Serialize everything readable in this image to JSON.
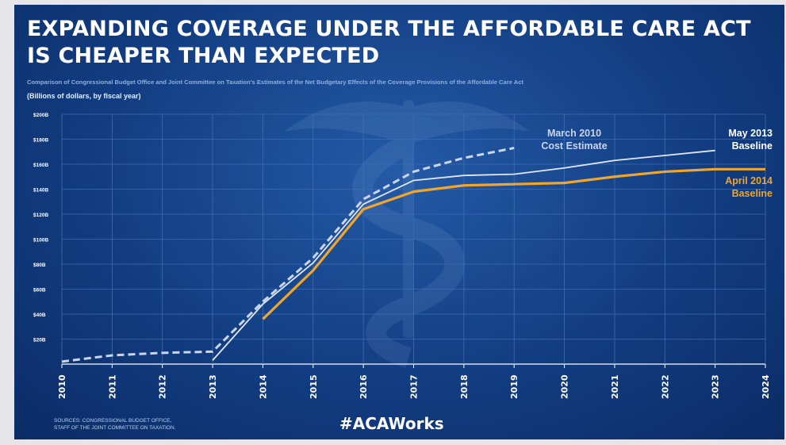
{
  "poster": {
    "title_line1": "EXPANDING COVERAGE UNDER THE AFFORDABLE CARE ACT",
    "title_line2": "IS CHEAPER THAN EXPECTED",
    "subtitle": "Comparison of Congressional Budget Office and Joint Committee on Taxation's Estimates of the Net Budgetary Effects of the Coverage Provisions of the Affordable Care Act",
    "unit_note": "(Billions of dollars, by fiscal year)",
    "sources_line1": "SOURCES: CONGRESSIONAL BUDGET OFFICE,",
    "sources_line2": "STAFF OF THE JOINT COMMITTEE ON TAXATION.",
    "hashtag": "#ACAWorks",
    "watermark_icon": "caduceus-icon"
  },
  "colors": {
    "background": "#123d82",
    "march2010": "#c9d6ee",
    "may2013": "#dfe7f6",
    "april2014": "#f0a62a",
    "grid": "#3d6db3",
    "text": "#ffffff"
  },
  "chart_data": {
    "type": "line",
    "x": [
      2010,
      2011,
      2012,
      2013,
      2014,
      2015,
      2016,
      2017,
      2018,
      2019,
      2020,
      2021,
      2022,
      2023,
      2024
    ],
    "ylim": [
      0,
      200
    ],
    "yticks": [
      20,
      40,
      60,
      80,
      100,
      120,
      140,
      160,
      180,
      200
    ],
    "ytick_labels": [
      "$20B",
      "$40B",
      "$60B",
      "$80B",
      "$100B",
      "$120B",
      "$140B",
      "$160B",
      "$180B",
      "$200B"
    ],
    "xtick_labels": [
      "2010",
      "2011",
      "2012",
      "2013",
      "2014",
      "2015",
      "2016",
      "2017",
      "2018",
      "2019",
      "2020",
      "2021",
      "2022",
      "2023",
      "2024"
    ],
    "grid": true,
    "series": [
      {
        "name": "March 2010 Cost Estimate",
        "label_lines": [
          "March 2010",
          "Cost Estimate"
        ],
        "style": "dashed",
        "color": "#c9d6ee",
        "x": [
          2010,
          2011,
          2012,
          2013,
          2014,
          2015,
          2016,
          2017,
          2018,
          2019
        ],
        "values": [
          2,
          7,
          9,
          10,
          50,
          85,
          132,
          154,
          165,
          173
        ]
      },
      {
        "name": "May 2013 Baseline",
        "label_lines": [
          "May 2013",
          "Baseline"
        ],
        "style": "solid",
        "color": "#dfe7f6",
        "x": [
          2013,
          2014,
          2015,
          2016,
          2017,
          2018,
          2019,
          2020,
          2021,
          2022,
          2023
        ],
        "values": [
          3,
          48,
          81,
          128,
          147,
          151,
          152,
          157,
          163,
          167,
          171
        ]
      },
      {
        "name": "April 2014 Baseline",
        "label_lines": [
          "April 2014",
          "Baseline"
        ],
        "style": "solid",
        "color": "#f0a62a",
        "x": [
          2014,
          2015,
          2016,
          2017,
          2018,
          2019,
          2020,
          2021,
          2022,
          2023,
          2024
        ],
        "values": [
          36,
          75,
          124,
          138,
          143,
          144,
          145,
          150,
          154,
          156,
          156
        ]
      }
    ]
  }
}
